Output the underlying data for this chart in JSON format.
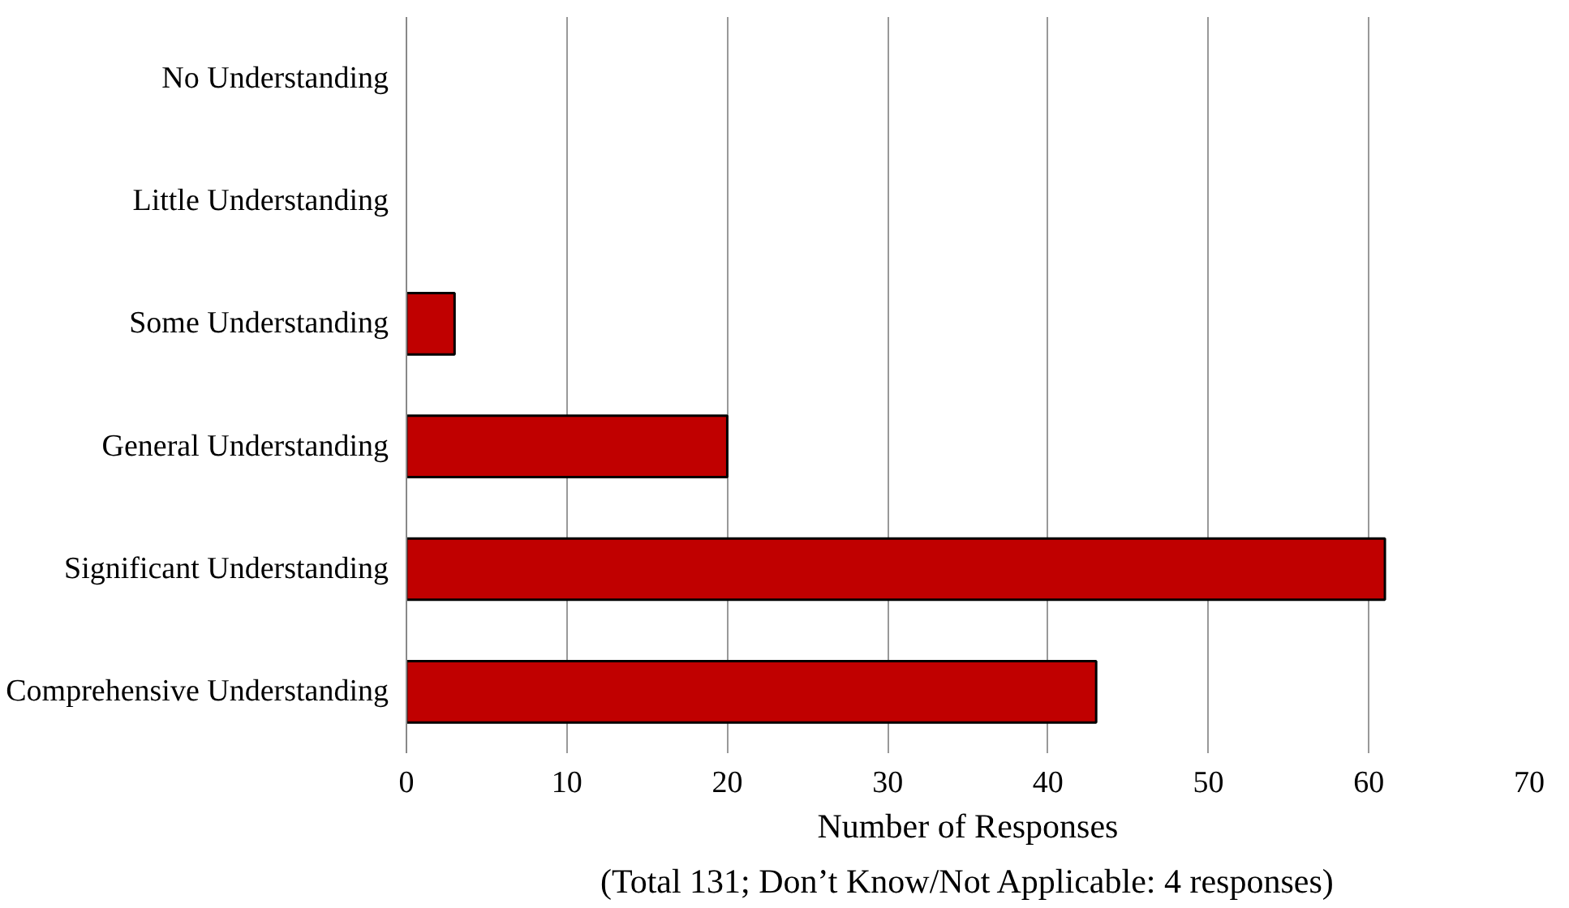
{
  "chart_data": {
    "type": "bar",
    "orientation": "horizontal",
    "categories": [
      "No Understanding",
      "Little Understanding",
      "Some Understanding",
      "General Understanding",
      "Significant Understanding",
      "Comprehensive Understanding"
    ],
    "values": [
      0,
      0,
      3,
      20,
      61,
      43
    ],
    "color": "#c00000",
    "xlim": [
      0,
      70
    ],
    "xticks": [
      0,
      10,
      20,
      30,
      40,
      50,
      60,
      70
    ],
    "grid": "x",
    "xlabel": "Number of Responses",
    "annotations": [
      "(Total 131; Don’t Know/Not Applicable: 4 responses)"
    ]
  }
}
